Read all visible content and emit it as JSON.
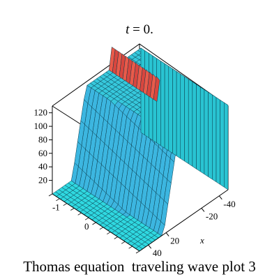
{
  "chart_data": {
    "type": "surface3d",
    "title_var": "t",
    "title_rest": " = 0.",
    "caption": "Thomas equation  traveling wave plot 3",
    "xlabel": "x",
    "ylabel": "",
    "zlabel": "",
    "x_ticks": [
      "-40",
      "-20",
      "20",
      "40"
    ],
    "y_ticks": [
      "-1",
      "0"
    ],
    "z_ticks": [
      "120",
      "100",
      "80",
      "60",
      "40",
      "20"
    ],
    "xlim": [
      -50,
      50
    ],
    "ylim": [
      -1.5,
      1.5
    ],
    "zlim": [
      0,
      130
    ],
    "surface": {
      "description_levels": {
        "low_plateau": 0,
        "high_plateau": 125
      },
      "peak_height": 140,
      "color": "#2fd8e0",
      "peak_color": "#e03a3a",
      "grid_color": "#0a3a4a"
    }
  }
}
